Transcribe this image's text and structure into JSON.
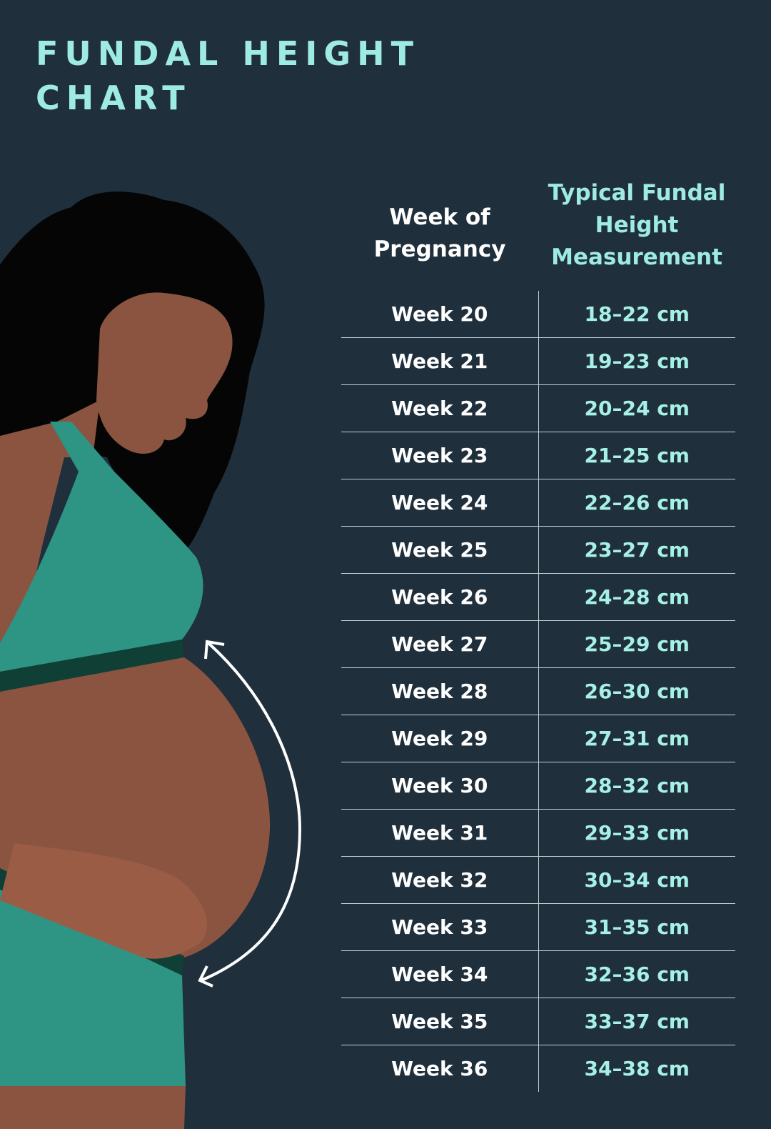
{
  "header": {
    "title": "FUNDAL HEIGHT CHART"
  },
  "table": {
    "columns": [
      "Week of Pregnancy",
      "Typical Fundal Height Measurement"
    ],
    "rows": [
      [
        "Week 20",
        "18–22 cm"
      ],
      [
        "Week 21",
        "19–23 cm"
      ],
      [
        "Week 22",
        "20–24 cm"
      ],
      [
        "Week 23",
        "21–25 cm"
      ],
      [
        "Week 24",
        "22–26 cm"
      ],
      [
        "Week 25",
        "23–27 cm"
      ],
      [
        "Week 26",
        "24–28 cm"
      ],
      [
        "Week 27",
        "25–29 cm"
      ],
      [
        "Week 28",
        "26–30 cm"
      ],
      [
        "Week 29",
        "27–31 cm"
      ],
      [
        "Week 30",
        "28–32 cm"
      ],
      [
        "Week 31",
        "29–33 cm"
      ],
      [
        "Week 32",
        "30–34 cm"
      ],
      [
        "Week 33",
        "31–35 cm"
      ],
      [
        "Week 34",
        "32–36 cm"
      ],
      [
        "Week 35",
        "33–37 cm"
      ],
      [
        "Week 36",
        "34–38 cm"
      ]
    ]
  }
}
